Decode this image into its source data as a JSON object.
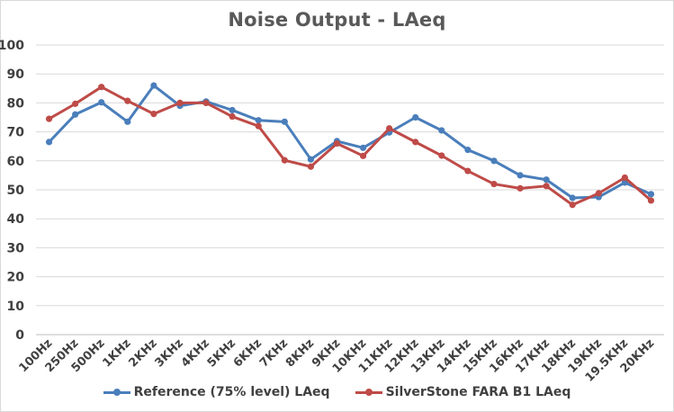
{
  "chart_data": {
    "type": "line",
    "title": "Noise Output - LAeq",
    "categories": [
      "100Hz",
      "250Hz",
      "500Hz",
      "1KHz",
      "2KHz",
      "3KHz",
      "4KHz",
      "5KHz",
      "6KHz",
      "7KHz",
      "8KHz",
      "9KHz",
      "10KHz",
      "11KHz",
      "12KHz",
      "13KHz",
      "14KHz",
      "15KHz",
      "16KHz",
      "17KHz",
      "18KHz",
      "19KHz",
      "19.5KHz",
      "20KHz"
    ],
    "ylim": [
      0,
      100
    ],
    "yticks": [
      0,
      10,
      20,
      30,
      40,
      50,
      60,
      70,
      80,
      90,
      100
    ],
    "grid": true,
    "legend_position": "bottom",
    "series": [
      {
        "name": "Reference (75% level) LAeq",
        "color": "#4a7ebb",
        "values": [
          66.5,
          76,
          80.2,
          73.5,
          86,
          79,
          80.5,
          77.5,
          74,
          73.5,
          60.5,
          66.8,
          64.5,
          69.8,
          75,
          70.5,
          63.8,
          60,
          55,
          53.5,
          47.2,
          47.5,
          52.5,
          48.5
        ]
      },
      {
        "name": "SilverStone FARA B1 LAeq",
        "color": "#be4b48",
        "values": [
          74.5,
          79.7,
          85.5,
          80.7,
          76.2,
          80,
          80,
          75.3,
          72,
          60.2,
          58,
          66,
          61.7,
          71.2,
          66.5,
          61.8,
          56.5,
          52,
          50.5,
          51.3,
          44.8,
          48.8,
          54.2,
          46.3
        ]
      }
    ]
  }
}
